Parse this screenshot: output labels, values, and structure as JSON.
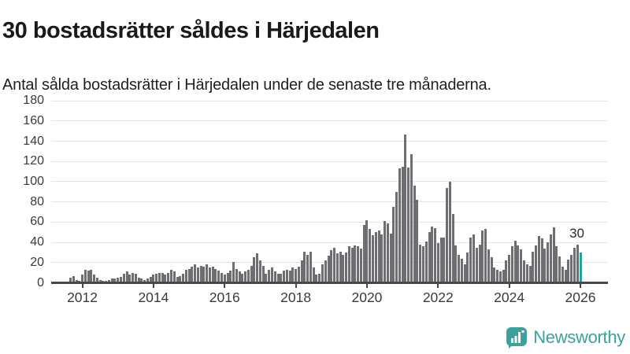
{
  "header": {
    "title": "30 bostadsrätter såldes i Härjedalen",
    "subtitle": "Antal sålda bostadsrätter i Härjedalen under de senaste tre månaderna."
  },
  "chart_data": {
    "type": "bar",
    "title": "30 bostadsrätter såldes i Härjedalen",
    "subtitle": "Antal sålda bostadsrätter i Härjedalen under de senaste tre månaderna.",
    "ylabel": "",
    "xlabel": "",
    "ylim": [
      0,
      180
    ],
    "grid": true,
    "yticks": [
      0,
      20,
      40,
      60,
      80,
      100,
      120,
      140,
      160,
      180
    ],
    "xticks": [
      2012,
      2014,
      2016,
      2018,
      2020,
      2022,
      2024,
      2026
    ],
    "bar_color": "#6d6d72",
    "highlight_color": "#20a69d",
    "highlight_index": 172,
    "highlight_label": "30",
    "x": [
      "2011-09",
      "2011-10",
      "2011-11",
      "2011-12",
      "2012-01",
      "2012-02",
      "2012-03",
      "2012-04",
      "2012-05",
      "2012-06",
      "2012-07",
      "2012-08",
      "2012-09",
      "2012-10",
      "2012-11",
      "2012-12",
      "2013-01",
      "2013-02",
      "2013-03",
      "2013-04",
      "2013-05",
      "2013-06",
      "2013-07",
      "2013-08",
      "2013-09",
      "2013-10",
      "2013-11",
      "2013-12",
      "2014-01",
      "2014-02",
      "2014-03",
      "2014-04",
      "2014-05",
      "2014-06",
      "2014-07",
      "2014-08",
      "2014-09",
      "2014-10",
      "2014-11",
      "2014-12",
      "2015-01",
      "2015-02",
      "2015-03",
      "2015-04",
      "2015-05",
      "2015-06",
      "2015-07",
      "2015-08",
      "2015-09",
      "2015-10",
      "2015-11",
      "2015-12",
      "2016-01",
      "2016-02",
      "2016-03",
      "2016-04",
      "2016-05",
      "2016-06",
      "2016-07",
      "2016-08",
      "2016-09",
      "2016-10",
      "2016-11",
      "2016-12",
      "2017-01",
      "2017-02",
      "2017-03",
      "2017-04",
      "2017-05",
      "2017-06",
      "2017-07",
      "2017-08",
      "2017-09",
      "2017-10",
      "2017-11",
      "2017-12",
      "2018-01",
      "2018-02",
      "2018-03",
      "2018-04",
      "2018-05",
      "2018-06",
      "2018-07",
      "2018-08",
      "2018-09",
      "2018-10",
      "2018-11",
      "2018-12",
      "2019-01",
      "2019-02",
      "2019-03",
      "2019-04",
      "2019-05",
      "2019-06",
      "2019-07",
      "2019-08",
      "2019-09",
      "2019-10",
      "2019-11",
      "2019-12",
      "2020-01",
      "2020-02",
      "2020-03",
      "2020-04",
      "2020-05",
      "2020-06",
      "2020-07",
      "2020-08",
      "2020-09",
      "2020-10",
      "2020-11",
      "2020-12",
      "2021-01",
      "2021-02",
      "2021-03",
      "2021-04",
      "2021-05",
      "2021-06",
      "2021-07",
      "2021-08",
      "2021-09",
      "2021-10",
      "2021-11",
      "2021-12",
      "2022-01",
      "2022-02",
      "2022-03",
      "2022-04",
      "2022-05",
      "2022-06",
      "2022-07",
      "2022-08",
      "2022-09",
      "2022-10",
      "2022-11",
      "2022-12",
      "2023-01",
      "2023-02",
      "2023-03",
      "2023-04",
      "2023-05",
      "2023-06",
      "2023-07",
      "2023-08",
      "2023-09",
      "2023-10",
      "2023-11",
      "2023-12",
      "2024-01",
      "2024-02",
      "2024-03",
      "2024-04",
      "2024-05",
      "2024-06",
      "2024-07",
      "2024-08",
      "2024-09",
      "2024-10",
      "2024-11",
      "2024-12",
      "2025-01",
      "2025-02",
      "2025-03",
      "2025-04",
      "2025-05",
      "2025-06",
      "2025-07",
      "2025-08",
      "2025-09",
      "2025-10",
      "2025-11",
      "2025-12",
      "2026-01"
    ],
    "values": [
      5,
      7,
      3,
      2,
      8,
      13,
      12,
      13,
      8,
      5,
      3,
      2,
      2,
      3,
      4,
      4,
      5,
      6,
      9,
      11,
      8,
      10,
      9,
      5,
      4,
      3,
      4,
      6,
      8,
      9,
      10,
      10,
      8,
      10,
      13,
      11,
      6,
      7,
      9,
      13,
      14,
      16,
      18,
      15,
      17,
      16,
      18,
      15,
      16,
      14,
      12,
      10,
      8,
      10,
      12,
      21,
      14,
      11,
      9,
      11,
      13,
      17,
      25,
      29,
      22,
      17,
      9,
      13,
      15,
      11,
      9,
      9,
      12,
      13,
      12,
      15,
      14,
      16,
      22,
      31,
      28,
      31,
      15,
      8,
      9,
      18,
      22,
      27,
      32,
      35,
      29,
      31,
      28,
      30,
      36,
      35,
      37,
      36,
      34,
      57,
      62,
      53,
      47,
      50,
      52,
      48,
      61,
      59,
      49,
      75,
      90,
      113,
      115,
      147,
      114,
      127,
      96,
      82,
      38,
      36,
      41,
      50,
      56,
      54,
      39,
      45,
      45,
      94,
      100,
      68,
      37,
      28,
      24,
      18,
      30,
      45,
      48,
      35,
      38,
      52,
      53,
      33,
      25,
      15,
      13,
      11,
      13,
      22,
      28,
      36,
      42,
      37,
      33,
      22,
      18,
      17,
      31,
      37,
      46,
      44,
      34,
      40,
      48,
      55,
      36,
      26,
      16,
      13,
      23,
      28,
      35,
      38,
      30
    ]
  },
  "footer": {
    "brand": "Newsworthy",
    "logo_icon": "newsworthy-speech-bubble-bar-chart",
    "brand_color": "#3ba29b"
  }
}
